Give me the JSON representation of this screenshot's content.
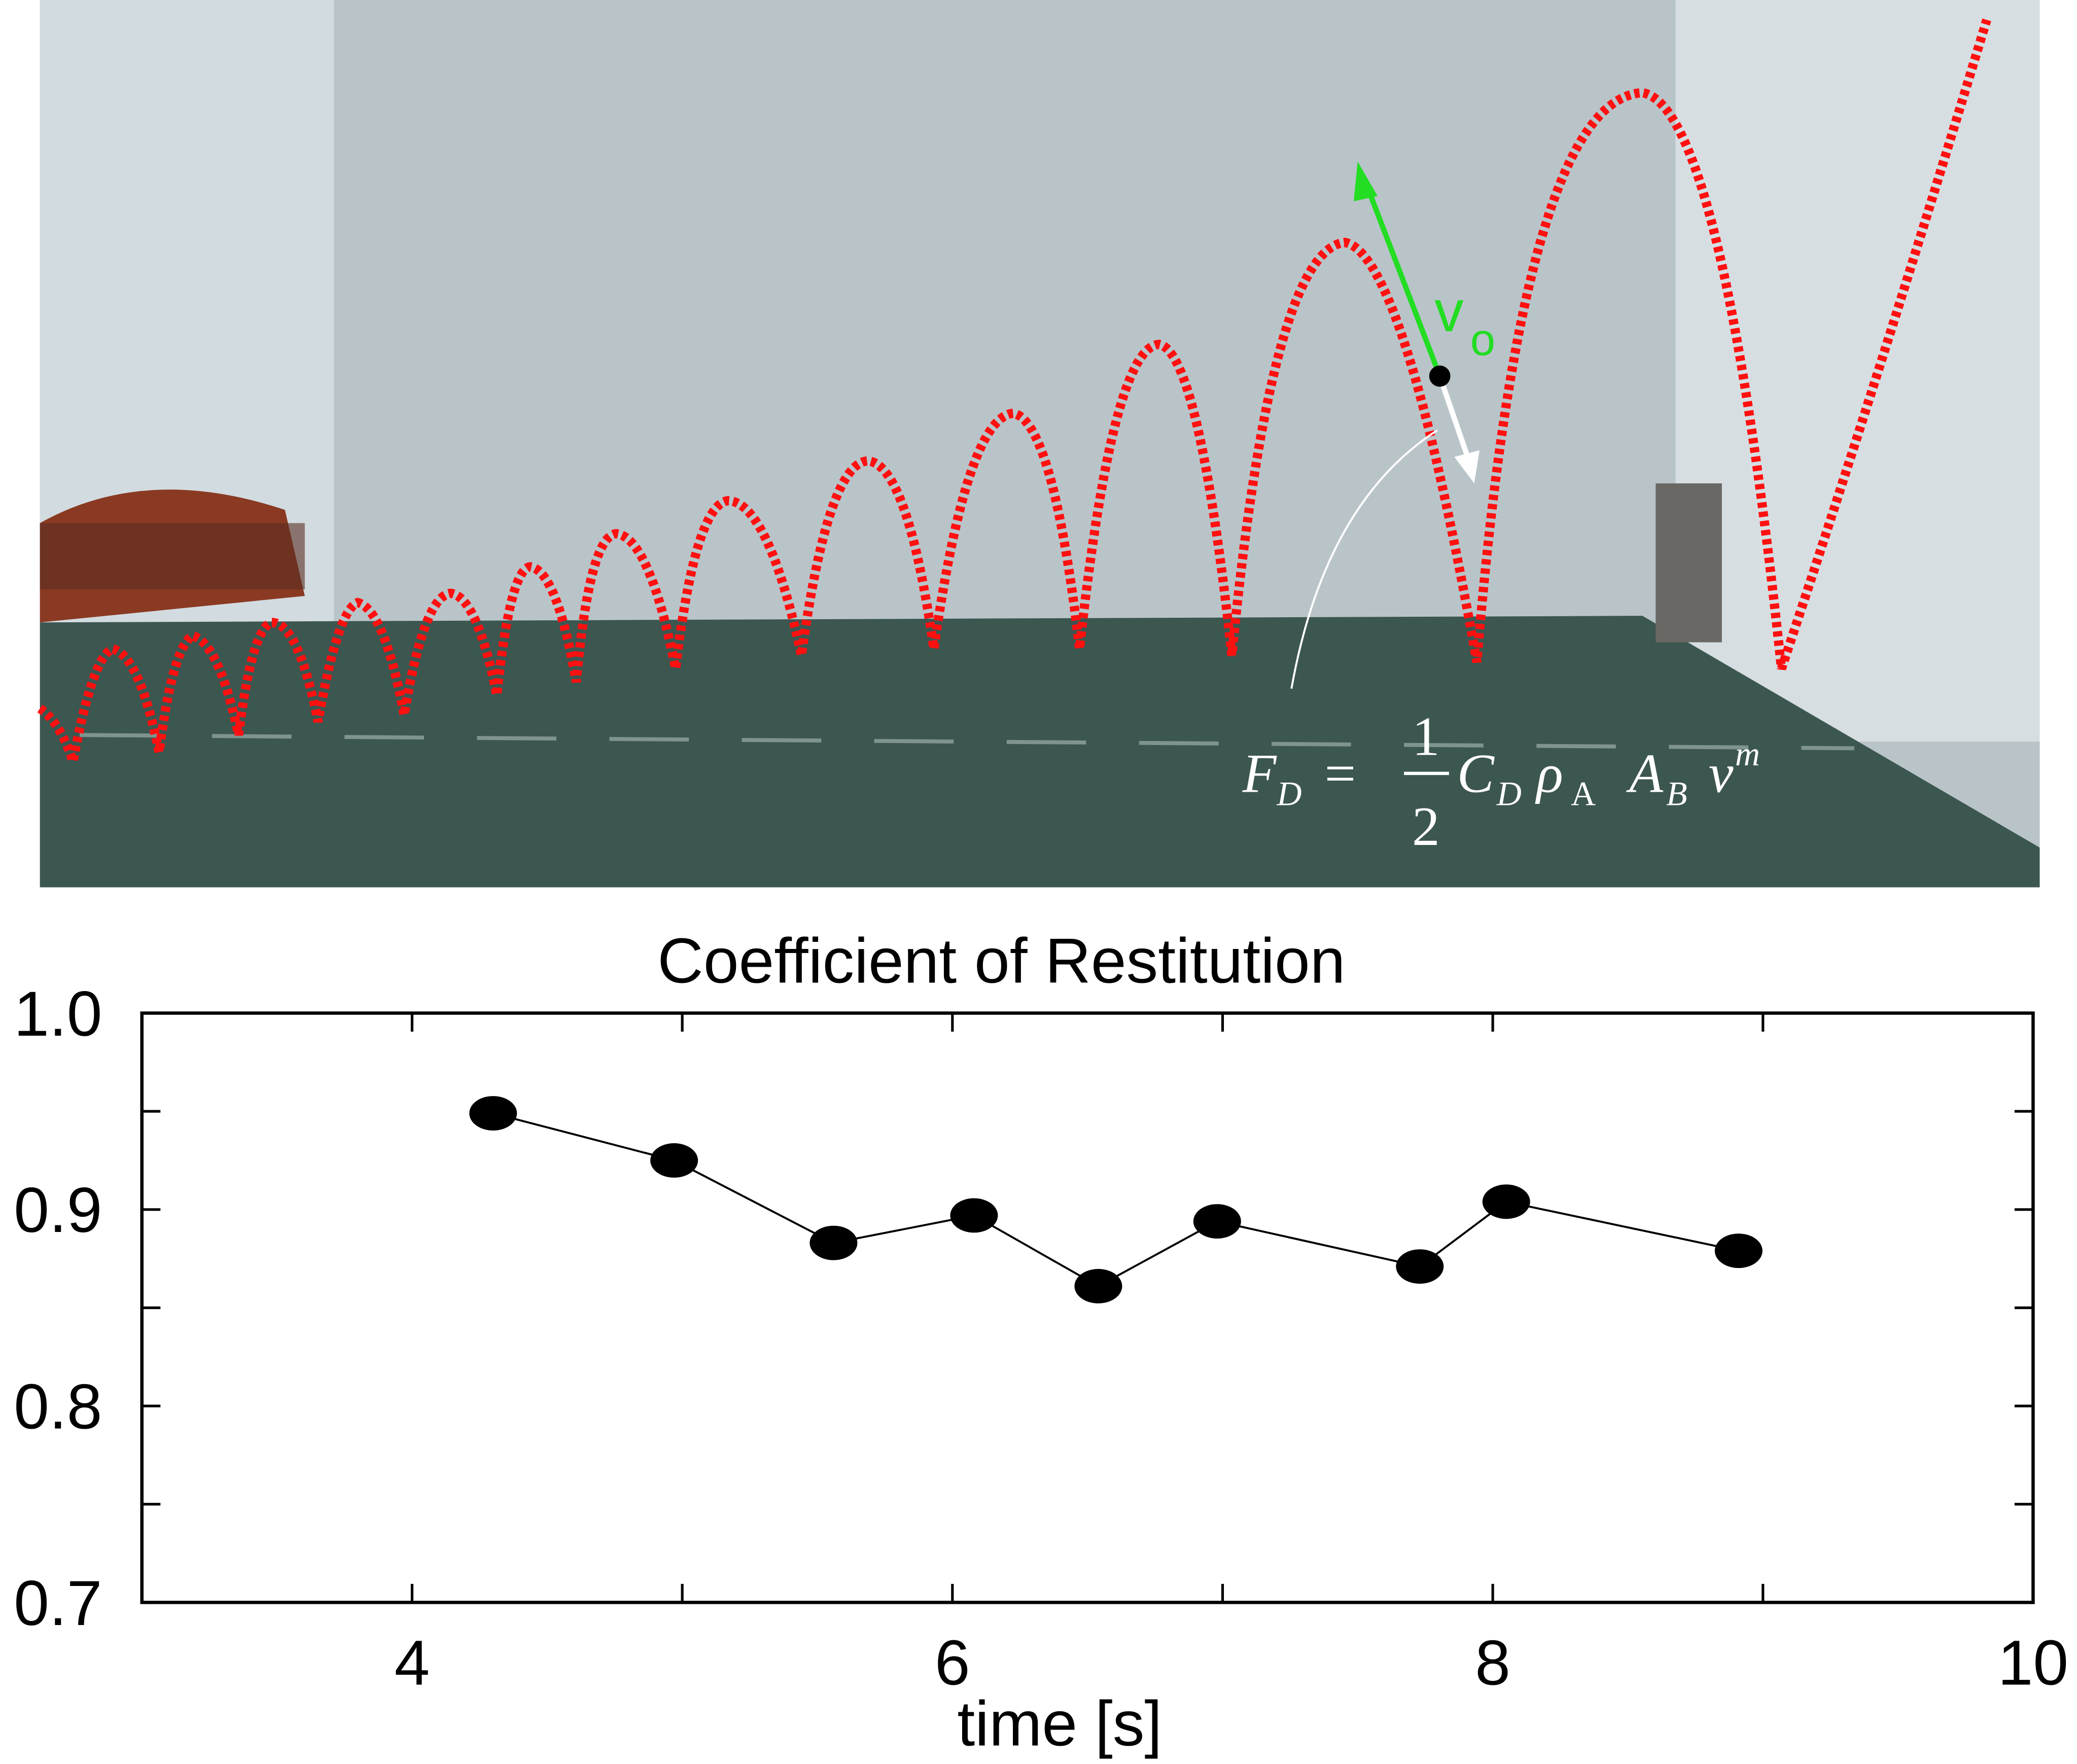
{
  "photo": {
    "velocity_label": "v",
    "velocity_subscript": "o",
    "formula": {
      "lhs": "F",
      "lhs_sub": "D",
      "eq": "=",
      "num": "1",
      "den": "2",
      "c": "C",
      "c_sub": "D",
      "rho": "ρ",
      "rho_sub": "A",
      "a": "A",
      "a_sub": "B",
      "v": "v",
      "v_sup": "m"
    }
  },
  "chart_data": {
    "type": "line",
    "title": "Coefficient of Restitution",
    "x_label": "time [s]",
    "x": [
      4.3,
      4.97,
      5.56,
      6.08,
      6.54,
      6.98,
      7.73,
      8.05,
      8.91
    ],
    "values": [
      0.949,
      0.925,
      0.883,
      0.897,
      0.861,
      0.894,
      0.871,
      0.904,
      0.879
    ],
    "color": "#000000",
    "xlim": [
      3,
      10
    ],
    "xticks": [
      4,
      6,
      8,
      10
    ],
    "xminorticks": [
      5,
      7,
      9
    ],
    "ylim": [
      0.7,
      1
    ],
    "yticks": [
      0.7,
      0.8,
      0.9,
      {
        "value": 1,
        "label": "1.0"
      }
    ],
    "yminorticks": [
      0.75,
      0.85,
      0.95
    ]
  }
}
